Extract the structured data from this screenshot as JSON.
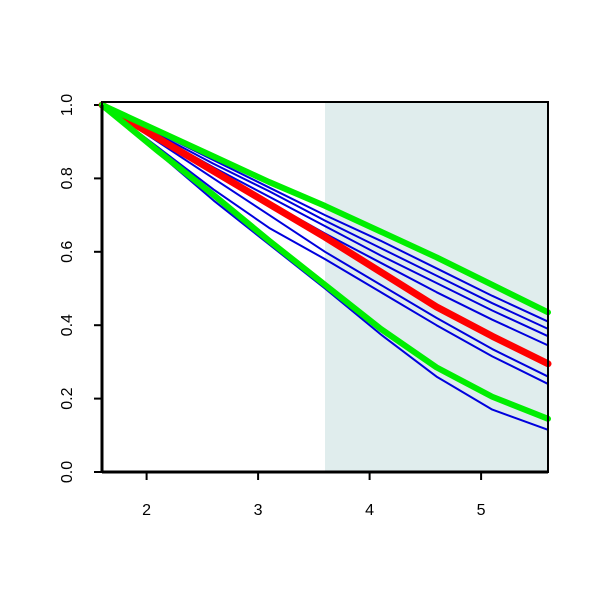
{
  "chart_data": {
    "type": "line",
    "x": [
      1.6,
      2.1,
      2.6,
      3.1,
      3.6,
      4.1,
      4.6,
      5.1,
      5.6
    ],
    "xlim": [
      1.6,
      5.6
    ],
    "xticks": [
      2,
      3,
      4,
      5
    ],
    "ylim": [
      0,
      1
    ],
    "yticks": [
      {
        "value": 0,
        "label": "0.0"
      },
      0.2,
      0.4,
      0.6,
      0.8,
      {
        "value": 1,
        "label": "1.0"
      }
    ],
    "shade": {
      "xrange": [
        3.6,
        5.6
      ],
      "color": "#e0eded"
    },
    "series": [
      {
        "color": "#0000dd",
        "width": 2,
        "values": [
          1,
          0.925,
          0.85,
          0.775,
          0.7,
          0.63,
          0.555,
          0.48,
          0.41
        ]
      },
      {
        "color": "#0000dd",
        "width": 2,
        "values": [
          1,
          0.92,
          0.84,
          0.765,
          0.685,
          0.61,
          0.535,
          0.46,
          0.39
        ]
      },
      {
        "color": "#0000dd",
        "width": 2,
        "values": [
          1,
          0.915,
          0.83,
          0.75,
          0.67,
          0.59,
          0.515,
          0.44,
          0.37
        ]
      },
      {
        "color": "#0000dd",
        "width": 2,
        "values": [
          1,
          0.91,
          0.82,
          0.735,
          0.65,
          0.57,
          0.49,
          0.415,
          0.345
        ]
      },
      {
        "color": "#0000dd",
        "width": 2,
        "values": [
          1,
          0.9,
          0.8,
          0.7,
          0.6,
          0.51,
          0.42,
          0.335,
          0.26
        ]
      },
      {
        "color": "#0000dd",
        "width": 2,
        "values": [
          1,
          0.885,
          0.77,
          0.665,
          0.58,
          0.49,
          0.4,
          0.315,
          0.24
        ]
      },
      {
        "color": "#0000dd",
        "width": 2,
        "values": [
          1,
          0.87,
          0.74,
          0.62,
          0.5,
          0.375,
          0.26,
          0.17,
          0.115
        ]
      },
      {
        "color": "#ff0000",
        "width": 7,
        "values": [
          1,
          0.91,
          0.82,
          0.73,
          0.64,
          0.545,
          0.45,
          0.37,
          0.295
        ]
      },
      {
        "color": "#00ee00",
        "width": 6,
        "values": [
          1,
          0.93,
          0.86,
          0.79,
          0.725,
          0.655,
          0.585,
          0.51,
          0.435
        ]
      },
      {
        "color": "#00ee00",
        "width": 6,
        "values": [
          1,
          0.875,
          0.755,
          0.63,
          0.51,
          0.39,
          0.285,
          0.205,
          0.145
        ]
      }
    ]
  }
}
